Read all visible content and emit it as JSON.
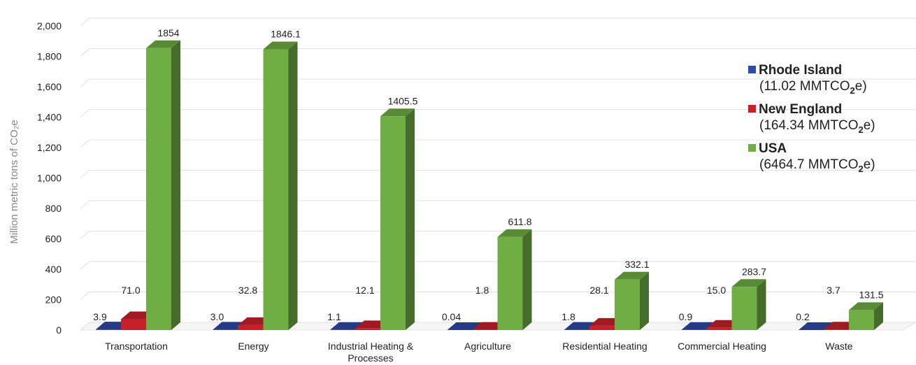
{
  "chart_data": {
    "type": "bar",
    "ylabel": "Million metric tons of CO₂e",
    "ylim": [
      0,
      2000
    ],
    "yticks": [
      "0",
      "200",
      "400",
      "600",
      "800",
      "1,000",
      "1,200",
      "1,400",
      "1,600",
      "1,800",
      "2,000"
    ],
    "grid": true,
    "legend_position": "right",
    "categories": [
      "Transportation",
      "Energy",
      "Industrial Heating & Processes",
      "Agriculture",
      "Residential Heating",
      "Commercial Heating",
      "Waste"
    ],
    "series": [
      {
        "name": "Rhode Island",
        "subtitle_prefix": "(11.02 MMTCO",
        "subtitle_sub": "2",
        "subtitle_suffix": "e)",
        "color": "#2f4aa8",
        "values": [
          3.9,
          3.0,
          1.1,
          0.04,
          1.8,
          0.9,
          0.2
        ],
        "labels": [
          "3.9",
          "3.0",
          "1.1",
          "0.04",
          "1.8",
          "0.9",
          "0.2"
        ]
      },
      {
        "name": "New England",
        "subtitle_prefix": "(164.34 MMTCO",
        "subtitle_sub": "2",
        "subtitle_suffix": "e)",
        "color": "#c8202a",
        "values": [
          71.0,
          32.8,
          12.1,
          1.8,
          28.1,
          15.0,
          3.7
        ],
        "labels": [
          "71.0",
          "32.8",
          "12.1",
          "1.8",
          "28.1",
          "15.0",
          "3.7"
        ]
      },
      {
        "name": "USA",
        "subtitle_prefix": "(6464.7 MMTCO",
        "subtitle_sub": "2",
        "subtitle_suffix": "e)",
        "color": "#6fae44",
        "values": [
          1854,
          1846.1,
          1405.5,
          611.8,
          332.1,
          283.7,
          131.5
        ],
        "labels": [
          "1854",
          "1846.1",
          "1405.5",
          "611.8",
          "332.1",
          "283.7",
          "131.5"
        ]
      }
    ]
  }
}
